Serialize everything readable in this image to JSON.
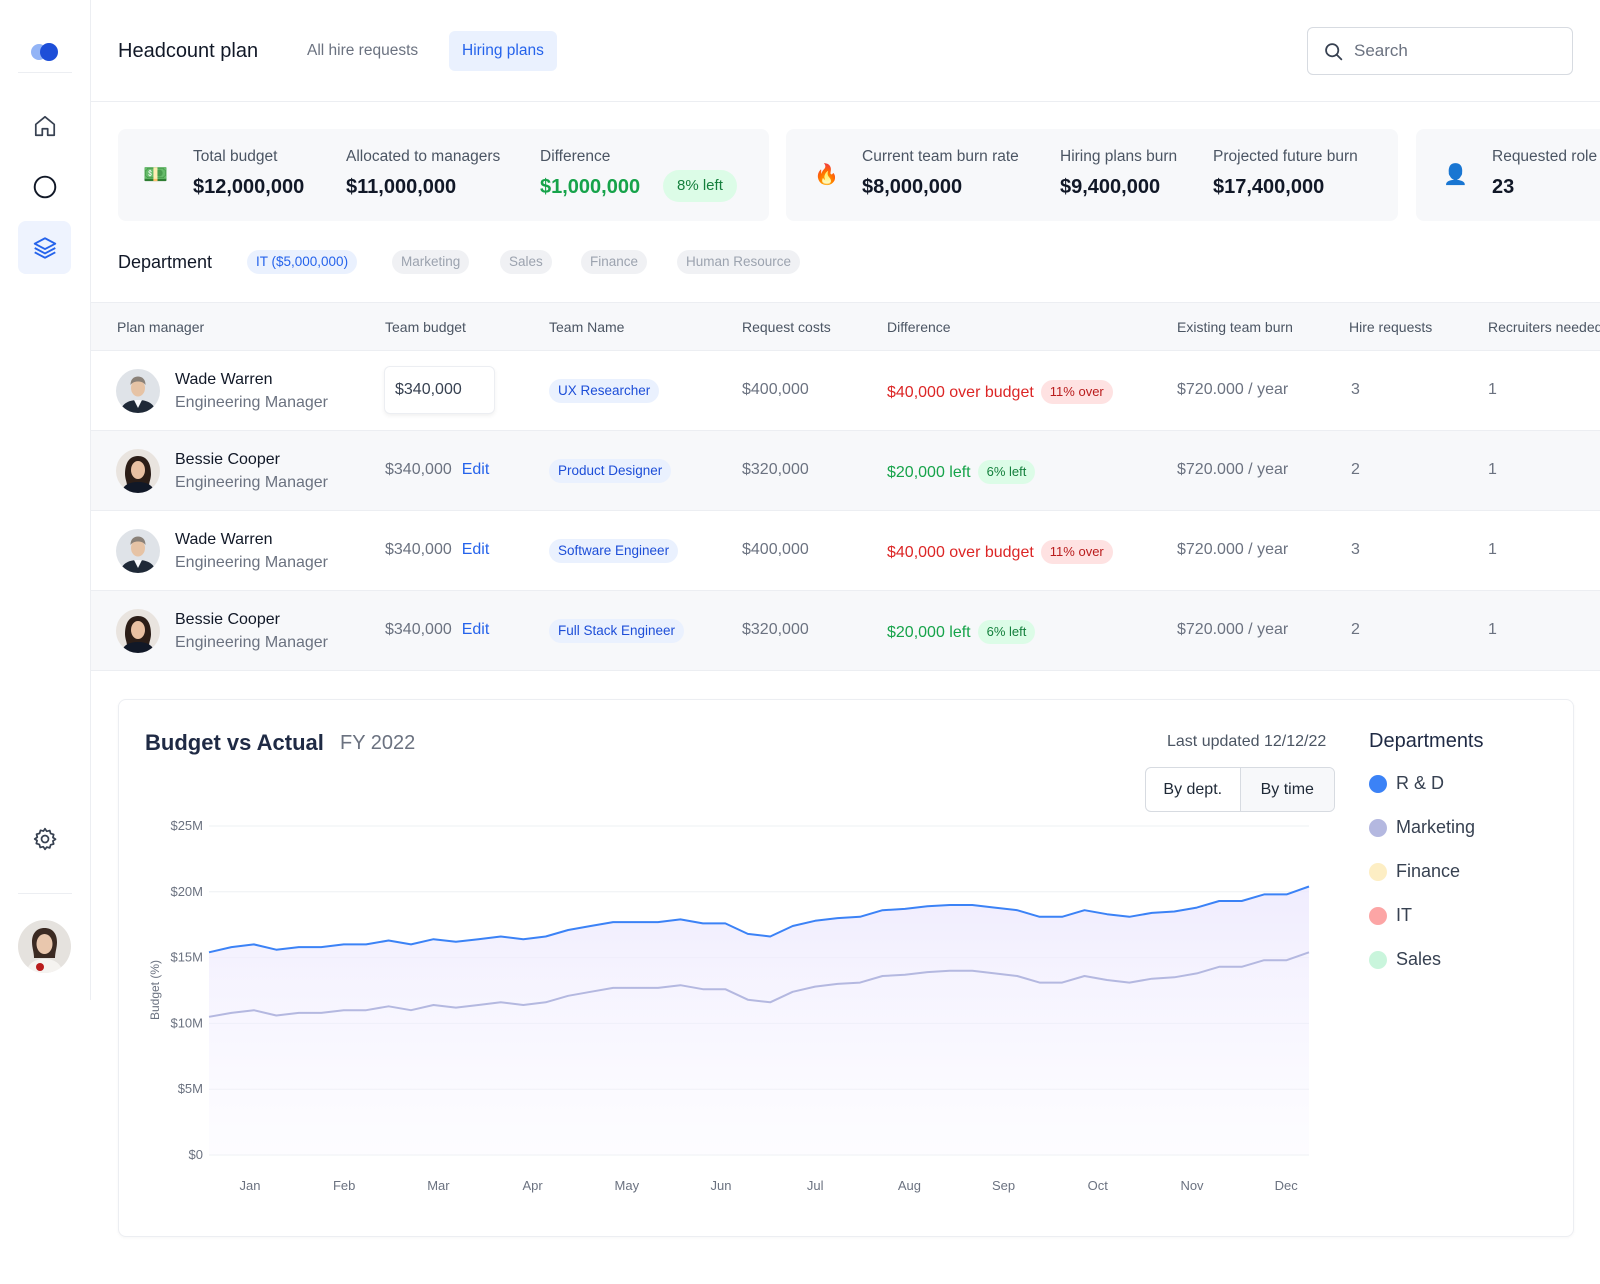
{
  "header": {
    "title": "Headcount plan",
    "tabs": [
      {
        "label": "All hire requests",
        "active": false
      },
      {
        "label": "Hiring plans",
        "active": true
      }
    ],
    "search_placeholder": "Search"
  },
  "stats": {
    "total_budget": {
      "label": "Total budget",
      "value": "$12,000,000"
    },
    "allocated": {
      "label": "Allocated to managers",
      "value": "$11,000,000"
    },
    "difference": {
      "label": "Difference",
      "value": "$1,000,000",
      "badge": "8% left"
    },
    "burn_rate": {
      "label": "Current team burn rate",
      "value": "$8,000,000"
    },
    "plans_burn": {
      "label": "Hiring plans burn",
      "value": "$9,400,000"
    },
    "future_burn": {
      "label": "Projected future burn",
      "value": "$17,400,000"
    },
    "requested_roles": {
      "label": "Requested role",
      "value": "23"
    }
  },
  "departments": {
    "label": "Department",
    "chips": [
      "IT ($5,000,000)",
      "Marketing",
      "Sales",
      "Finance",
      "Human Resource"
    ]
  },
  "table": {
    "columns": [
      "Plan manager",
      "Team budget",
      "Team Name",
      "Request costs",
      "Difference",
      "Existing team burn",
      "Hire requests",
      "Recruiters needed"
    ],
    "edit_label": "Edit",
    "rows": [
      {
        "name": "Wade Warren",
        "role": "Engineering Manager",
        "budget": "$340,000",
        "team": "UX Researcher",
        "cost": "$400,000",
        "diff": "$40,000 over budget",
        "diff_badge": "11% over",
        "status": "over",
        "burn": "$720.000 / year",
        "hires": "3",
        "recruiters": "1"
      },
      {
        "name": "Bessie Cooper",
        "role": "Engineering Manager",
        "budget": "$340,000",
        "team": "Product Designer",
        "cost": "$320,000",
        "diff": "$20,000 left",
        "diff_badge": "6% left",
        "status": "left",
        "burn": "$720.000 / year",
        "hires": "2",
        "recruiters": "1"
      },
      {
        "name": "Wade Warren",
        "role": "Engineering Manager",
        "budget": "$340,000",
        "team": "Software Engineer",
        "cost": "$400,000",
        "diff": "$40,000 over budget",
        "diff_badge": "11% over",
        "status": "over",
        "burn": "$720.000 / year",
        "hires": "3",
        "recruiters": "1"
      },
      {
        "name": "Bessie Cooper",
        "role": "Engineering Manager",
        "budget": "$340,000",
        "team": "Full Stack Engineer",
        "cost": "$320,000",
        "diff": "$20,000 left",
        "diff_badge": "6% left",
        "status": "left",
        "burn": "$720.000 / year",
        "hires": "2",
        "recruiters": "1"
      }
    ]
  },
  "chart_card": {
    "title": "Budget vs Actual",
    "subtitle": "FY 2022",
    "updated": "Last updated 12/12/22",
    "toggle": [
      "By dept.",
      "By time"
    ],
    "legend_title": "Departments",
    "legend": [
      {
        "name": "R & D",
        "color": "#3b82f6"
      },
      {
        "name": "Marketing",
        "color": "#b4b8e0"
      },
      {
        "name": "Finance",
        "color": "#fdeec4"
      },
      {
        "name": "IT",
        "color": "#fca5a5"
      },
      {
        "name": "Sales",
        "color": "#c9f5dc"
      }
    ]
  },
  "chart_data": {
    "type": "area",
    "ylabel": "Budget (%)",
    "y_ticks": [
      "$0",
      "$5M",
      "$10M",
      "$15M",
      "$20M",
      "$25M"
    ],
    "ylim": [
      0,
      25
    ],
    "x_ticks": [
      "Jan",
      "Feb",
      "Mar",
      "Apr",
      "May",
      "Jun",
      "Jul",
      "Aug",
      "Sep",
      "Oct",
      "Nov",
      "Dec"
    ],
    "grid": true,
    "series": [
      {
        "name": "R & D",
        "color": "#3b82f6",
        "values": [
          15.4,
          15.8,
          16.0,
          15.6,
          15.8,
          15.8,
          16.0,
          16.0,
          16.3,
          16.0,
          16.4,
          16.2,
          16.4,
          16.6,
          16.4,
          16.6,
          17.1,
          17.4,
          17.7,
          17.7,
          17.7,
          17.9,
          17.6,
          17.6,
          16.8,
          16.6,
          17.4,
          17.8,
          18.0,
          18.1,
          18.6,
          18.7,
          18.9,
          19.0,
          19.0,
          18.8,
          18.6,
          18.1,
          18.1,
          18.6,
          18.3,
          18.1,
          18.4,
          18.5,
          18.8,
          19.3,
          19.3,
          19.8,
          19.8,
          20.4
        ]
      },
      {
        "name": "Marketing",
        "color": "#b4b8e0",
        "values": [
          10.5,
          10.8,
          11.0,
          10.6,
          10.8,
          10.8,
          11.0,
          11.0,
          11.3,
          11.0,
          11.4,
          11.2,
          11.4,
          11.6,
          11.4,
          11.6,
          12.1,
          12.4,
          12.7,
          12.7,
          12.7,
          12.9,
          12.6,
          12.6,
          11.8,
          11.6,
          12.4,
          12.8,
          13.0,
          13.1,
          13.6,
          13.7,
          13.9,
          14.0,
          14.0,
          13.8,
          13.6,
          13.1,
          13.1,
          13.6,
          13.3,
          13.1,
          13.4,
          13.5,
          13.8,
          14.3,
          14.3,
          14.8,
          14.8,
          15.4
        ]
      }
    ]
  }
}
